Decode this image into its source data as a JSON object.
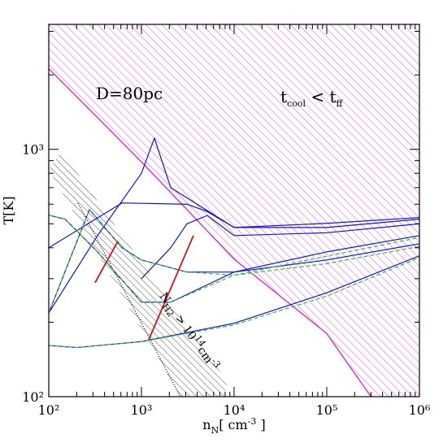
{
  "chart_data": {
    "type": "line",
    "xlabel": [
      {
        "text": "n"
      },
      {
        "text": "N",
        "shift": "sub"
      },
      {
        "text": "[ cm"
      },
      {
        "text": "-3",
        "shift": "sup"
      },
      {
        "text": " ]"
      }
    ],
    "ylabel": [
      {
        "text": "T[K]"
      }
    ],
    "log_x": true,
    "log_y": true,
    "xlim": [
      100,
      1000000
    ],
    "ylim": [
      100,
      3200
    ],
    "xticks": [
      {
        "value": 100,
        "label": "10²"
      },
      {
        "value": 1000,
        "label": "10³"
      },
      {
        "value": 10000,
        "label": "10⁴"
      },
      {
        "value": 100000,
        "label": "10⁵"
      },
      {
        "value": 1000000,
        "label": "10⁶"
      }
    ],
    "yticks": [
      {
        "value": 100,
        "label": "10²"
      },
      {
        "value": 1000,
        "label": "10³"
      }
    ],
    "xminorticks": [
      200,
      300,
      400,
      500,
      600,
      700,
      800,
      900,
      2000,
      3000,
      4000,
      5000,
      6000,
      7000,
      8000,
      9000,
      20000,
      30000,
      40000,
      50000,
      60000,
      70000,
      80000,
      90000,
      200000,
      300000,
      400000,
      500000,
      600000,
      700000,
      800000,
      900000
    ],
    "yminorticks": [
      200,
      300,
      400,
      500,
      600,
      700,
      800,
      900,
      2000,
      3000
    ],
    "boundary": {
      "color": "#e020e0",
      "x": [
        100,
        1000,
        10000,
        100000,
        300000
      ],
      "values": [
        2120,
        890,
        360,
        180,
        100
      ]
    },
    "series": [
      {
        "color": "#1010e0",
        "dash": false,
        "x": [
          100,
          150,
          336,
          1000,
          2070,
          10000,
          100000,
          1000000
        ],
        "values": [
          542,
          522,
          385,
          241,
          241,
          319,
          385,
          448
        ]
      },
      {
        "color": "#1010e0",
        "dash": false,
        "x": [
          100,
          275,
          617,
          1000,
          3100,
          10000,
          100000,
          1000000
        ],
        "values": [
          218,
          571,
          400,
          357,
          319,
          319,
          357,
          415
        ]
      },
      {
        "color": "#1010e0",
        "dash": false,
        "x": [
          100,
          336,
          1000,
          1380,
          2070,
          10000,
          100000,
          1000000
        ],
        "values": [
          218,
          448,
          800,
          1110,
          700,
          483,
          483,
          522
        ]
      },
      {
        "color": "#1010e0",
        "dash": false,
        "x": [
          100,
          617,
          3100,
          5140,
          10000,
          100000,
          1000000
        ],
        "values": [
          400,
          607,
          600,
          560,
          483,
          502,
          530
        ]
      },
      {
        "color": "#1010e0",
        "dash": false,
        "x": [
          1000,
          2070,
          3100,
          5140,
          10000,
          100000,
          1000000
        ],
        "values": [
          300,
          400,
          500,
          540,
          448,
          460,
          500
        ]
      },
      {
        "color": "#1010e0",
        "dash": false,
        "x": [
          100,
          200,
          1000,
          10000,
          100000,
          1000000
        ],
        "values": [
          161,
          158,
          167,
          198,
          263,
          371
        ]
      },
      {
        "color": "#30c030",
        "dash": true,
        "x": [
          100,
          150,
          336,
          1000,
          2070,
          10000,
          100000,
          1000000
        ],
        "values": [
          542,
          522,
          385,
          241,
          241,
          310,
          370,
          440
        ]
      },
      {
        "color": "#30c030",
        "dash": true,
        "x": [
          100,
          275,
          617,
          1000,
          3100,
          10000,
          100000,
          1000000
        ],
        "values": [
          218,
          571,
          400,
          357,
          319,
          310,
          345,
          405
        ]
      },
      {
        "color": "#30c030",
        "dash": true,
        "x": [
          100,
          200,
          1000,
          10000,
          100000,
          1000000
        ],
        "values": [
          161,
          158,
          167,
          195,
          255,
          365
        ]
      },
      {
        "color": "#e01010",
        "dash": false,
        "x": [
          316,
          557
        ],
        "values": [
          289,
          425
        ]
      },
      {
        "color": "#e01010",
        "dash": false,
        "x": [
          1200,
          3640
        ],
        "values": [
          170,
          448
        ]
      }
    ],
    "annotations": [
      {
        "runs": [
          {
            "text": "D=80pc"
          }
        ]
      },
      {
        "runs": [
          {
            "text": "t"
          },
          {
            "text": "cool",
            "shift": "sub"
          },
          {
            "text": " < t"
          },
          {
            "text": "ff",
            "shift": "sub"
          }
        ]
      },
      {
        "runs": [
          {
            "text": "N"
          },
          {
            "text": "H2",
            "shift": "sub"
          },
          {
            "text": " > 10"
          },
          {
            "text": "14",
            "shift": "sup"
          },
          {
            "text": "cm"
          },
          {
            "text": "-3",
            "shift": "sup"
          }
        ]
      }
    ]
  }
}
